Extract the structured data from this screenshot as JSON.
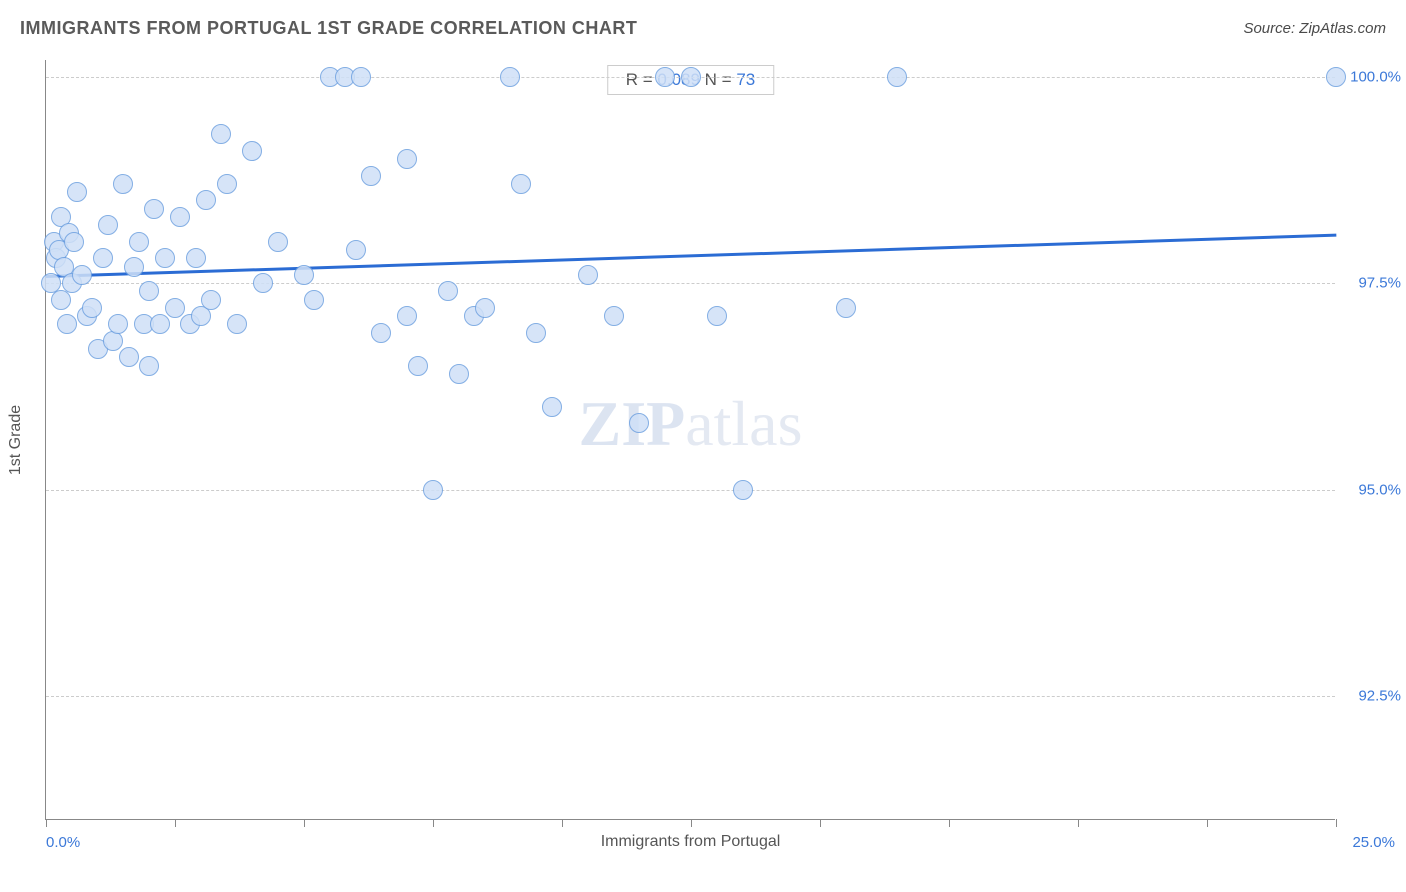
{
  "header": {
    "title": "IMMIGRANTS FROM PORTUGAL 1ST GRADE CORRELATION CHART",
    "source": "Source: ZipAtlas.com"
  },
  "chart": {
    "type": "scatter",
    "xlabel": "Immigrants from Portugal",
    "ylabel": "1st Grade",
    "xlim": [
      0.0,
      25.0
    ],
    "ylim": [
      91.0,
      100.2
    ],
    "xticks": [
      0,
      2.5,
      5.0,
      7.5,
      10.0,
      12.5,
      15.0,
      17.5,
      20.0,
      22.5,
      25.0
    ],
    "yticks": [
      92.5,
      95.0,
      97.5,
      100.0
    ],
    "ytick_labels": [
      "92.5%",
      "95.0%",
      "97.5%",
      "100.0%"
    ],
    "xaxis_min_label": "0.0%",
    "xaxis_max_label": "25.0%",
    "grid_color": "#cccccc",
    "axis_color": "#888888",
    "label_color": "#555555",
    "tick_label_color": "#3b78d8",
    "background_color": "#ffffff",
    "marker": {
      "radius": 10,
      "fill": "#cfe0f7",
      "stroke": "#6ea0e0",
      "stroke_width": 1.2,
      "opacity": 0.85
    },
    "trendline": {
      "color": "#2b6cd4",
      "width": 3,
      "y_at_xmin": 97.6,
      "y_at_xmax": 98.1
    },
    "stats": {
      "r_label": "R = ",
      "r_value": "0.089",
      "n_label": "   N = ",
      "n_value": "73"
    },
    "watermark_1": "ZIP",
    "watermark_2": "atlas",
    "points": [
      [
        0.1,
        97.5
      ],
      [
        0.15,
        98.0
      ],
      [
        0.2,
        97.8
      ],
      [
        0.25,
        97.9
      ],
      [
        0.3,
        97.3
      ],
      [
        0.3,
        98.3
      ],
      [
        0.35,
        97.7
      ],
      [
        0.4,
        97.0
      ],
      [
        0.45,
        98.1
      ],
      [
        0.5,
        97.5
      ],
      [
        0.55,
        98.0
      ],
      [
        0.6,
        98.6
      ],
      [
        0.7,
        97.6
      ],
      [
        0.8,
        97.1
      ],
      [
        0.9,
        97.2
      ],
      [
        1.0,
        96.7
      ],
      [
        1.1,
        97.8
      ],
      [
        1.2,
        98.2
      ],
      [
        1.3,
        96.8
      ],
      [
        1.4,
        97.0
      ],
      [
        1.5,
        98.7
      ],
      [
        1.6,
        96.6
      ],
      [
        1.7,
        97.7
      ],
      [
        1.8,
        98.0
      ],
      [
        1.9,
        97.0
      ],
      [
        2.0,
        97.4
      ],
      [
        2.0,
        96.5
      ],
      [
        2.1,
        98.4
      ],
      [
        2.2,
        97.0
      ],
      [
        2.3,
        97.8
      ],
      [
        2.5,
        97.2
      ],
      [
        2.6,
        98.3
      ],
      [
        2.8,
        97.0
      ],
      [
        2.9,
        97.8
      ],
      [
        3.0,
        97.1
      ],
      [
        3.1,
        98.5
      ],
      [
        3.2,
        97.3
      ],
      [
        3.4,
        99.3
      ],
      [
        3.5,
        98.7
      ],
      [
        3.7,
        97.0
      ],
      [
        4.0,
        99.1
      ],
      [
        4.2,
        97.5
      ],
      [
        4.5,
        98.0
      ],
      [
        5.0,
        97.6
      ],
      [
        5.2,
        97.3
      ],
      [
        5.5,
        100.0
      ],
      [
        5.8,
        100.0
      ],
      [
        6.0,
        97.9
      ],
      [
        6.1,
        100.0
      ],
      [
        6.3,
        98.8
      ],
      [
        6.5,
        96.9
      ],
      [
        7.0,
        97.1
      ],
      [
        7.0,
        99.0
      ],
      [
        7.2,
        96.5
      ],
      [
        7.5,
        95.0
      ],
      [
        7.8,
        97.4
      ],
      [
        8.0,
        96.4
      ],
      [
        8.3,
        97.1
      ],
      [
        8.5,
        97.2
      ],
      [
        9.0,
        100.0
      ],
      [
        9.2,
        98.7
      ],
      [
        9.5,
        96.9
      ],
      [
        9.8,
        96.0
      ],
      [
        10.5,
        97.6
      ],
      [
        11.0,
        97.1
      ],
      [
        11.5,
        95.8
      ],
      [
        12.0,
        100.0
      ],
      [
        12.5,
        100.0
      ],
      [
        13.0,
        97.1
      ],
      [
        13.5,
        95.0
      ],
      [
        15.5,
        97.2
      ],
      [
        16.5,
        100.0
      ],
      [
        25.0,
        100.0
      ]
    ]
  }
}
